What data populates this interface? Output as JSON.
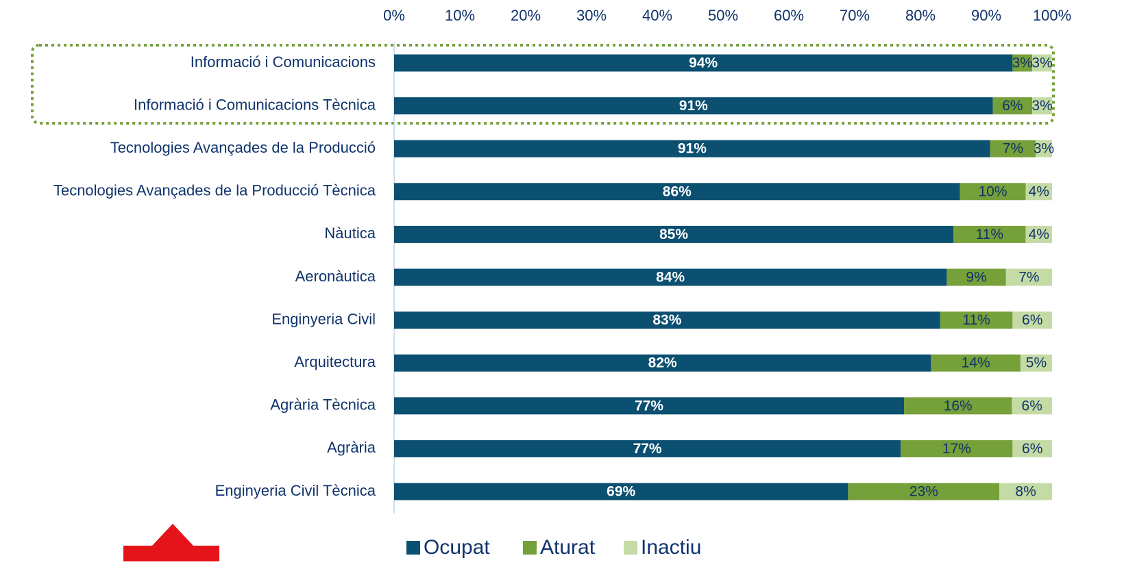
{
  "chart_data": {
    "type": "stacked-bar-horizontal",
    "categories": [
      "Informació i Comunicacions",
      "Informació i Comunicacions Tècnica",
      "Tecnologies Avançades de la Producció",
      "Tecnologies Avançades de la Producció Tècnica",
      "Nàutica",
      "Aeronàutica",
      "Enginyeria Civil",
      "Arquitectura",
      "Agrària Tècnica",
      "Agrària",
      "Enginyeria Civil Tècnica"
    ],
    "series": [
      {
        "name": "Ocupat",
        "color": "#0b4f71",
        "values": [
          94,
          91,
          90.6,
          86,
          85,
          84,
          83,
          81.6,
          77.5,
          77,
          69
        ],
        "value_labels": [
          "94%",
          "91%",
          "91%",
          "86%",
          "85%",
          "84%",
          "83%",
          "82%",
          "77%",
          "77%",
          "69%"
        ]
      },
      {
        "name": "Aturat",
        "color": "#76a03a",
        "values": [
          3,
          6,
          6.9,
          10,
          11,
          9,
          11,
          13.6,
          16.4,
          17,
          23
        ],
        "value_labels": [
          "3%",
          "6%",
          "7%",
          "10%",
          "11%",
          "9%",
          "11%",
          "14%",
          "16%",
          "17%",
          "23%"
        ]
      },
      {
        "name": "Inactiu",
        "color": "#c5dba5",
        "values": [
          3,
          3,
          2.5,
          4,
          4,
          7,
          6,
          4.8,
          6.1,
          6,
          8
        ],
        "value_labels": [
          "3%",
          "3%",
          "3%",
          "4%",
          "4%",
          "7%",
          "6%",
          "5%",
          "6%",
          "6%",
          "8%"
        ]
      }
    ],
    "xlim": [
      0,
      100
    ],
    "xticks": [
      {
        "value": 0,
        "label": "0%"
      },
      {
        "value": 10,
        "label": "10%"
      },
      {
        "value": 20,
        "label": "20%"
      },
      {
        "value": 30,
        "label": "30%"
      },
      {
        "value": 40,
        "label": "40%"
      },
      {
        "value": 50,
        "label": "50%"
      },
      {
        "value": 60,
        "label": "60%"
      },
      {
        "value": 70,
        "label": "70%"
      },
      {
        "value": 80,
        "label": "80%"
      },
      {
        "value": 90,
        "label": "90%"
      },
      {
        "value": 100,
        "label": "100%"
      }
    ],
    "legend": "bottom"
  }
}
